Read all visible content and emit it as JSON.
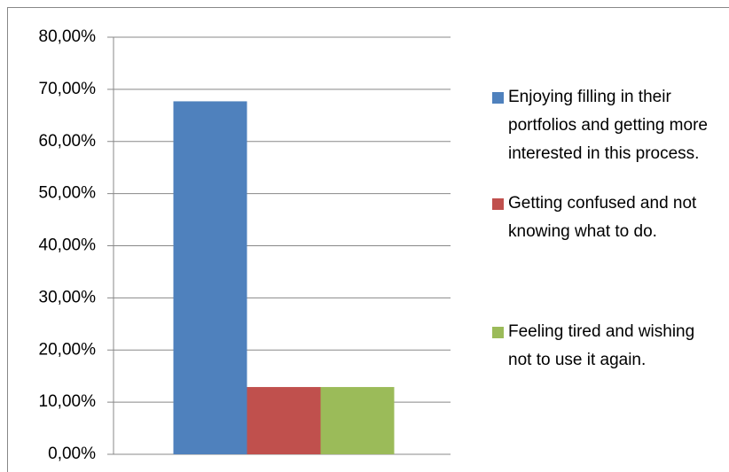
{
  "chart_data": {
    "type": "bar",
    "categories": [
      null
    ],
    "series": [
      {
        "name": "Enjoying filling in their portfolios and getting more interested in this process.",
        "color": "#4f81bd",
        "values": [
          67.7
        ]
      },
      {
        "name": "Getting confused and not knowing what to do.",
        "color": "#c0504d",
        "values": [
          12.9
        ]
      },
      {
        "name": "Feeling tired and wishing not to use it again.",
        "color": "#9bbb59",
        "values": [
          12.9
        ]
      }
    ],
    "ylim": [
      0,
      80
    ],
    "yticks": [
      {
        "value": 0,
        "label": "0,00%"
      },
      {
        "value": 10,
        "label": "10,00%"
      },
      {
        "value": 20,
        "label": "20,00%"
      },
      {
        "value": 30,
        "label": "30,00%"
      },
      {
        "value": 40,
        "label": "40,00%"
      },
      {
        "value": 50,
        "label": "50,00%"
      },
      {
        "value": 60,
        "label": "60,00%"
      },
      {
        "value": 70,
        "label": "70,00%"
      },
      {
        "value": 80,
        "label": "80,00%"
      }
    ],
    "grid": true,
    "legend": "right"
  }
}
